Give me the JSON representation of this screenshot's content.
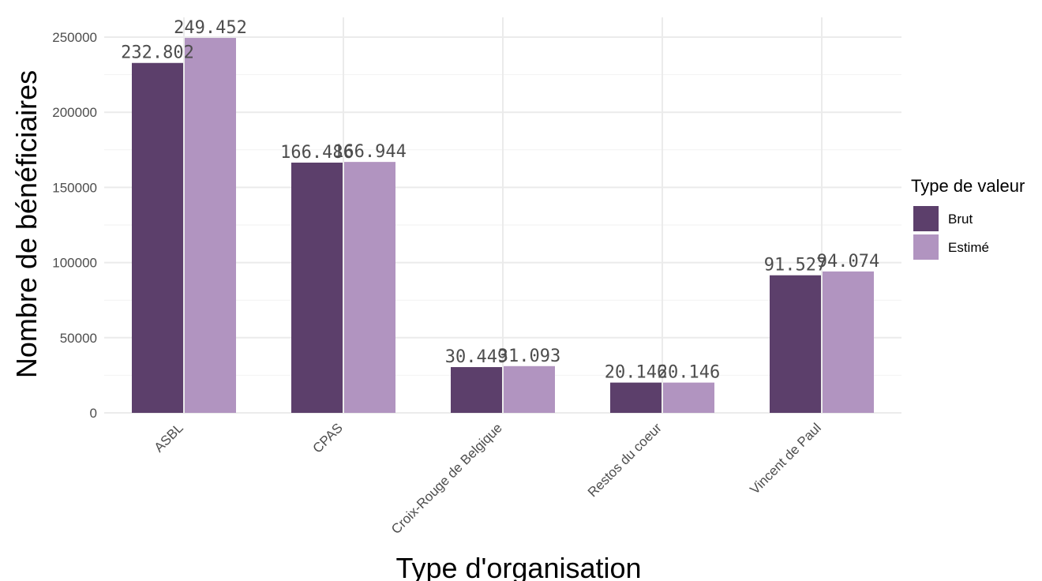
{
  "chart_data": {
    "type": "bar",
    "xlabel": "Type d'organisation",
    "ylabel": "Nombre de bénéficiaires",
    "ylim": [
      0,
      250000
    ],
    "yticks": [
      0,
      50000,
      100000,
      150000,
      200000,
      250000
    ],
    "ytick_labels": [
      "0",
      "50000",
      "100000",
      "150000",
      "200000",
      "250000"
    ],
    "grid": true,
    "categories": [
      "ASBL",
      "CPAS",
      "Croix-Rouge de Belgique",
      "Restos du coeur",
      "Vincent de Paul"
    ],
    "series": [
      {
        "name": "Brut",
        "color": "#5c3f6b",
        "values": [
          232802,
          166486,
          30449,
          20146,
          91527
        ],
        "labels": [
          "232.802",
          "166.486",
          "30.449",
          "20.146",
          "91.527"
        ]
      },
      {
        "name": "Estimé",
        "color": "#b194c0",
        "values": [
          249452,
          166944,
          31093,
          20146,
          94074
        ],
        "labels": [
          "249.452",
          "166.944",
          "31.093",
          "20.146",
          "94.074"
        ]
      }
    ],
    "legend": {
      "title": "Type de valeur",
      "position": "right"
    }
  }
}
